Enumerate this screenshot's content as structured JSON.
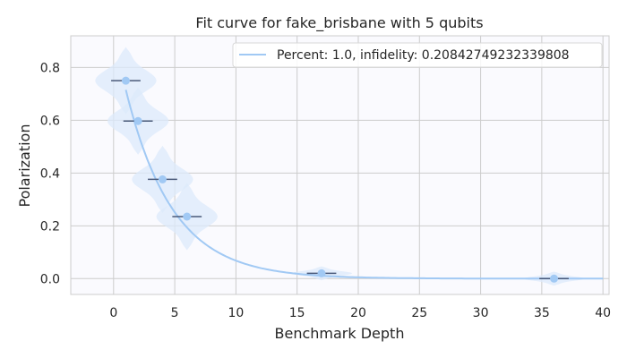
{
  "chart_data": {
    "type": "scatter",
    "title": "Fit curve for fake_brisbane with 5 qubits",
    "xlabel": "Benchmark Depth",
    "ylabel": "Polarization",
    "xlim": [
      -3.5,
      40.5
    ],
    "ylim": [
      -0.06,
      0.92
    ],
    "xticks": [
      0,
      5,
      10,
      15,
      20,
      25,
      30,
      35,
      40
    ],
    "yticks": [
      0.0,
      0.2,
      0.4,
      0.6,
      0.8
    ],
    "grid": true,
    "legend_position": "top-right",
    "colors": {
      "fit_line": "#a1c9f4",
      "points": "#a1c9f4",
      "violin": "#dce9fb",
      "errorbar": "#4a5a7a",
      "plot_bg": "#fafafe",
      "grid": "#cccccc"
    },
    "fit_curve": {
      "label": "Percent: 1.0, infidelity: 0.20842749232339808",
      "x_start": 1,
      "x_end": 40,
      "a": 0.929,
      "b": 0.77,
      "c": 0.0
    },
    "points": [
      {
        "x": 1,
        "y": 0.75,
        "xerr": 1.2,
        "spread": 0.058
      },
      {
        "x": 2,
        "y": 0.597,
        "xerr": 1.2,
        "spread": 0.058
      },
      {
        "x": 4,
        "y": 0.376,
        "xerr": 1.2,
        "spread": 0.058
      },
      {
        "x": 6,
        "y": 0.235,
        "xerr": 1.2,
        "spread": 0.058
      },
      {
        "x": 17,
        "y": 0.02,
        "xerr": 1.2,
        "spread": 0.012
      },
      {
        "x": 36,
        "y": 0.0,
        "xerr": 1.2,
        "spread": 0.012
      }
    ]
  }
}
